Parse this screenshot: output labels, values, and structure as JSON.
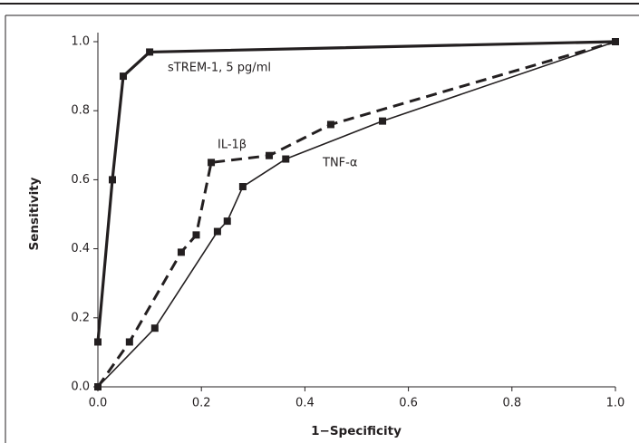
{
  "chart_data": {
    "type": "line",
    "xlabel": "1−Specificity",
    "ylabel": "Sensitivity",
    "xlim": [
      0,
      1
    ],
    "ylim": [
      0,
      1
    ],
    "xticks": [
      {
        "value": 0,
        "label": "0.0"
      },
      0.2,
      0.4,
      0.6,
      0.8,
      {
        "value": 1,
        "label": "1.0"
      }
    ],
    "yticks": [
      {
        "value": 0,
        "label": "0.0"
      },
      0.2,
      0.4,
      0.6,
      0.8,
      {
        "value": 1,
        "label": "1.0"
      }
    ],
    "series": [
      {
        "name": "sTREM-1, 5 pg/ml",
        "color": "#231f20",
        "style": "solid",
        "width": 3.2,
        "x": [
          0,
          0.028,
          0.049,
          0.1,
          1
        ],
        "values": [
          0.13,
          0.6,
          0.9,
          0.97,
          1
        ]
      },
      {
        "name": "IL-1β",
        "color": "#231f20",
        "style": "dashed",
        "width": 3,
        "x": [
          0,
          0.061,
          0.161,
          0.19,
          0.219,
          0.331,
          0.45,
          1
        ],
        "values": [
          0,
          0.13,
          0.39,
          0.44,
          0.65,
          0.67,
          0.76,
          1
        ]
      },
      {
        "name": "TNF-α",
        "color": "#231f20",
        "style": "solid",
        "width": 1.6,
        "x": [
          0,
          0.11,
          0.231,
          0.25,
          0.28,
          0.363,
          0.55,
          1
        ],
        "values": [
          0,
          0.17,
          0.45,
          0.48,
          0.58,
          0.66,
          0.77,
          1
        ]
      }
    ]
  }
}
